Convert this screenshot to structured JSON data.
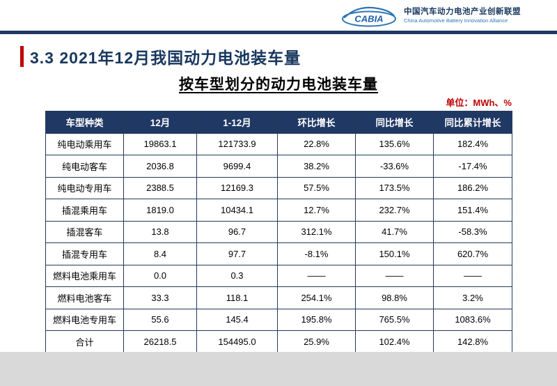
{
  "header": {
    "logo_text": "CABIA",
    "org_name_cn": "中国汽车动力电池产业创新联盟",
    "org_name_en": "China Automotive Battery Innovation Alliance"
  },
  "title": "3.3 2021年12月我国动力电池装车量",
  "subtitle": "按车型划分的动力电池装车量",
  "unit_label": "单位：MWh、%",
  "colors": {
    "header_row_bg": "#203864",
    "table_border": "#24385b",
    "title_navy": "#17375e",
    "accent_red": "#c00000",
    "brand_blue": "#2e75b6",
    "footer_gray": "#d9d9d9"
  },
  "chart_data": {
    "type": "table",
    "title": "按车型划分的动力电池装车量",
    "unit": "MWh、%",
    "columns": [
      "车型种类",
      "12月",
      "1-12月",
      "环比增长",
      "同比增长",
      "同比累计增长"
    ],
    "rows": [
      [
        "纯电动乘用车",
        "19863.1",
        "121733.9",
        "22.8%",
        "135.6%",
        "182.4%"
      ],
      [
        "纯电动客车",
        "2036.8",
        "9699.4",
        "38.2%",
        "-33.6%",
        "-17.4%"
      ],
      [
        "纯电动专用车",
        "2388.5",
        "12169.3",
        "57.5%",
        "173.5%",
        "186.2%"
      ],
      [
        "插混乘用车",
        "1819.0",
        "10434.1",
        "12.7%",
        "232.7%",
        "151.4%"
      ],
      [
        "插混客车",
        "13.8",
        "96.7",
        "312.1%",
        "41.7%",
        "-58.3%"
      ],
      [
        "插混专用车",
        "8.4",
        "97.7",
        "-8.1%",
        "150.1%",
        "620.7%"
      ],
      [
        "燃料电池乘用车",
        "0.0",
        "0.3",
        "——",
        "——",
        "——"
      ],
      [
        "燃料电池客车",
        "33.3",
        "118.1",
        "254.1%",
        "98.8%",
        "3.2%"
      ],
      [
        "燃料电池专用车",
        "55.6",
        "145.4",
        "195.8%",
        "765.5%",
        "1083.6%"
      ],
      [
        "合计",
        "26218.5",
        "154495.0",
        "25.9%",
        "102.4%",
        "142.8%"
      ]
    ]
  }
}
